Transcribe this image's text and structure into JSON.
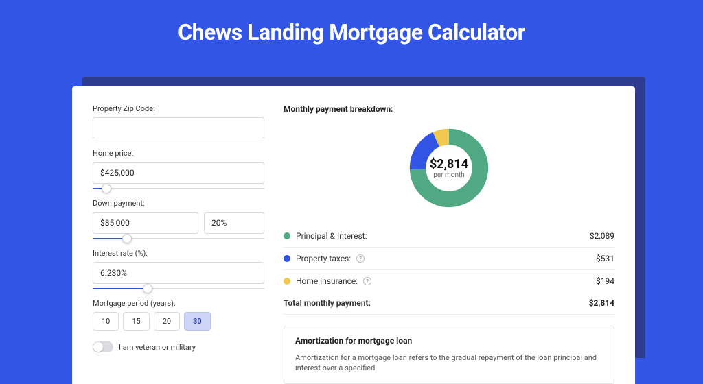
{
  "page": {
    "title": "Chews Landing Mortgage Calculator",
    "bg_color": "#3355e5",
    "shadow_color": "#2e3c8f"
  },
  "form": {
    "zip_label": "Property Zip Code:",
    "zip_value": "",
    "price_label": "Home price:",
    "price_value": "$425,000",
    "price_slider_pct": 8,
    "down_label": "Down payment:",
    "down_value": "$85,000",
    "down_pct": "20%",
    "down_slider_pct": 20,
    "rate_label": "Interest rate (%):",
    "rate_value": "6.230%",
    "rate_slider_pct": 32,
    "period_label": "Mortgage period (years):",
    "periods": [
      "10",
      "15",
      "20",
      "30"
    ],
    "period_active": "30",
    "veteran_label": "I am veteran or military",
    "veteran_on": false
  },
  "breakdown": {
    "title": "Monthly payment breakdown:",
    "total_value": "$2,814",
    "total_sub": "per month",
    "donut": {
      "slices": [
        {
          "color": "#51a984",
          "pct": 74.2
        },
        {
          "color": "#3355e5",
          "pct": 18.9
        },
        {
          "color": "#f0c850",
          "pct": 6.9
        }
      ],
      "stroke_width": 18
    },
    "rows": [
      {
        "label": "Principal & Interest:",
        "color": "#51a984",
        "value": "$2,089",
        "info": false
      },
      {
        "label": "Property taxes:",
        "color": "#3355e5",
        "value": "$531",
        "info": true
      },
      {
        "label": "Home insurance:",
        "color": "#f0c850",
        "value": "$194",
        "info": true
      }
    ],
    "total_label": "Total monthly payment:",
    "total_amount": "$2,814"
  },
  "amort": {
    "title": "Amortization for mortgage loan",
    "text": "Amortization for a mortgage loan refers to the gradual repayment of the loan principal and interest over a specified"
  }
}
